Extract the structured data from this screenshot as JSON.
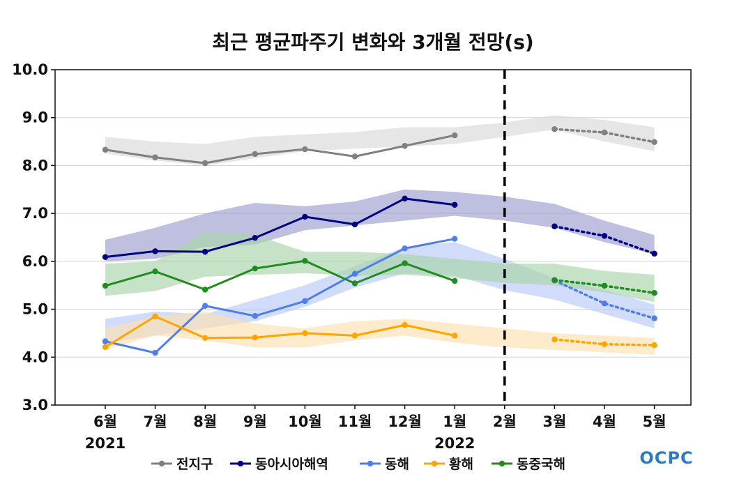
{
  "chart_data": {
    "type": "line",
    "title": "최근 평균파주기 변화와 3개월 전망(s)",
    "categories": [
      "6월",
      "7월",
      "8월",
      "9월",
      "10월",
      "11월",
      "12월",
      "1월",
      "2월",
      "3월",
      "4월",
      "5월"
    ],
    "year_labels": [
      {
        "index": 0,
        "label": "2021"
      },
      {
        "index": 7,
        "label": "2022"
      }
    ],
    "ylim": [
      3.0,
      10.0
    ],
    "yticks": [
      "3.0",
      "4.0",
      "5.0",
      "6.0",
      "7.0",
      "8.0",
      "9.0",
      "10.0"
    ],
    "divider_at": "2월",
    "grid": true,
    "series": [
      {
        "name": "전지구",
        "color": "#808080",
        "band_color": "#d9d9d9",
        "observed": [
          8.33,
          8.17,
          8.05,
          8.24,
          8.34,
          8.19,
          8.41,
          8.63
        ],
        "forecast": {
          "start": 9,
          "values": [
            8.76,
            8.69,
            8.49
          ]
        },
        "band": {
          "upper": [
            8.6,
            8.5,
            8.45,
            8.6,
            8.65,
            8.7,
            8.8,
            8.8,
            8.9,
            9.05,
            8.95,
            8.8
          ],
          "lower": [
            8.25,
            8.1,
            8.0,
            8.15,
            8.3,
            8.35,
            8.4,
            8.45,
            8.6,
            8.75,
            8.5,
            8.3
          ]
        }
      },
      {
        "name": "동아시아해역",
        "color": "#000080",
        "band_color": "#9d9dd0",
        "observed": [
          6.09,
          6.21,
          6.2,
          6.49,
          6.93,
          6.77,
          7.31,
          7.18
        ],
        "forecast": {
          "start": 9,
          "values": [
            6.73,
            6.53,
            6.16
          ]
        },
        "band": {
          "upper": [
            6.45,
            6.7,
            7.0,
            7.22,
            7.15,
            7.25,
            7.5,
            7.45,
            7.35,
            7.2,
            6.85,
            6.55
          ],
          "lower": [
            6.0,
            6.05,
            6.3,
            6.35,
            6.65,
            6.75,
            6.85,
            6.95,
            6.85,
            6.7,
            6.4,
            6.15
          ]
        }
      },
      {
        "name": "동해",
        "color": "#4f7fe6",
        "band_color": "#b8c9f7",
        "observed": [
          4.33,
          4.09,
          5.07,
          4.86,
          5.17,
          5.74,
          6.27,
          6.47
        ],
        "forecast": {
          "start": 9,
          "values": [
            5.6,
            5.12,
            4.81
          ]
        },
        "band": {
          "upper": [
            4.8,
            4.95,
            4.9,
            5.2,
            5.5,
            5.9,
            6.3,
            6.4,
            6.05,
            5.65,
            5.4,
            5.1
          ],
          "lower": [
            4.3,
            4.45,
            4.6,
            4.75,
            5.05,
            5.45,
            5.75,
            5.7,
            5.4,
            5.2,
            4.9,
            4.6
          ]
        }
      },
      {
        "name": "황해",
        "color": "#ffa500",
        "band_color": "#fde0b0",
        "observed": [
          4.21,
          4.85,
          4.4,
          4.41,
          4.5,
          4.45,
          4.67,
          4.45
        ],
        "forecast": {
          "start": 9,
          "values": [
            4.37,
            4.27,
            4.25
          ]
        },
        "band": {
          "upper": [
            4.6,
            4.85,
            4.95,
            4.7,
            4.6,
            4.75,
            4.8,
            4.7,
            4.6,
            4.5,
            4.45,
            4.4
          ],
          "lower": [
            4.15,
            4.45,
            4.35,
            4.2,
            4.2,
            4.35,
            4.45,
            4.3,
            4.2,
            4.15,
            4.1,
            4.05
          ]
        }
      },
      {
        "name": "동중국해",
        "color": "#228b22",
        "band_color": "#a9d4a9",
        "observed": [
          5.49,
          5.79,
          5.41,
          5.85,
          6.01,
          5.54,
          5.96,
          5.59
        ],
        "forecast": {
          "start": 9,
          "values": [
            5.61,
            5.49,
            5.34
          ]
        },
        "band": {
          "upper": [
            5.95,
            6.0,
            6.62,
            6.55,
            6.2,
            6.2,
            6.15,
            6.05,
            5.95,
            5.95,
            5.8,
            5.72
          ],
          "lower": [
            5.28,
            5.38,
            5.68,
            5.72,
            5.75,
            5.7,
            5.72,
            5.65,
            5.55,
            5.5,
            5.35,
            5.15
          ]
        }
      }
    ]
  },
  "logo": {
    "text": "OCPC",
    "color": "#2e7bbf"
  }
}
